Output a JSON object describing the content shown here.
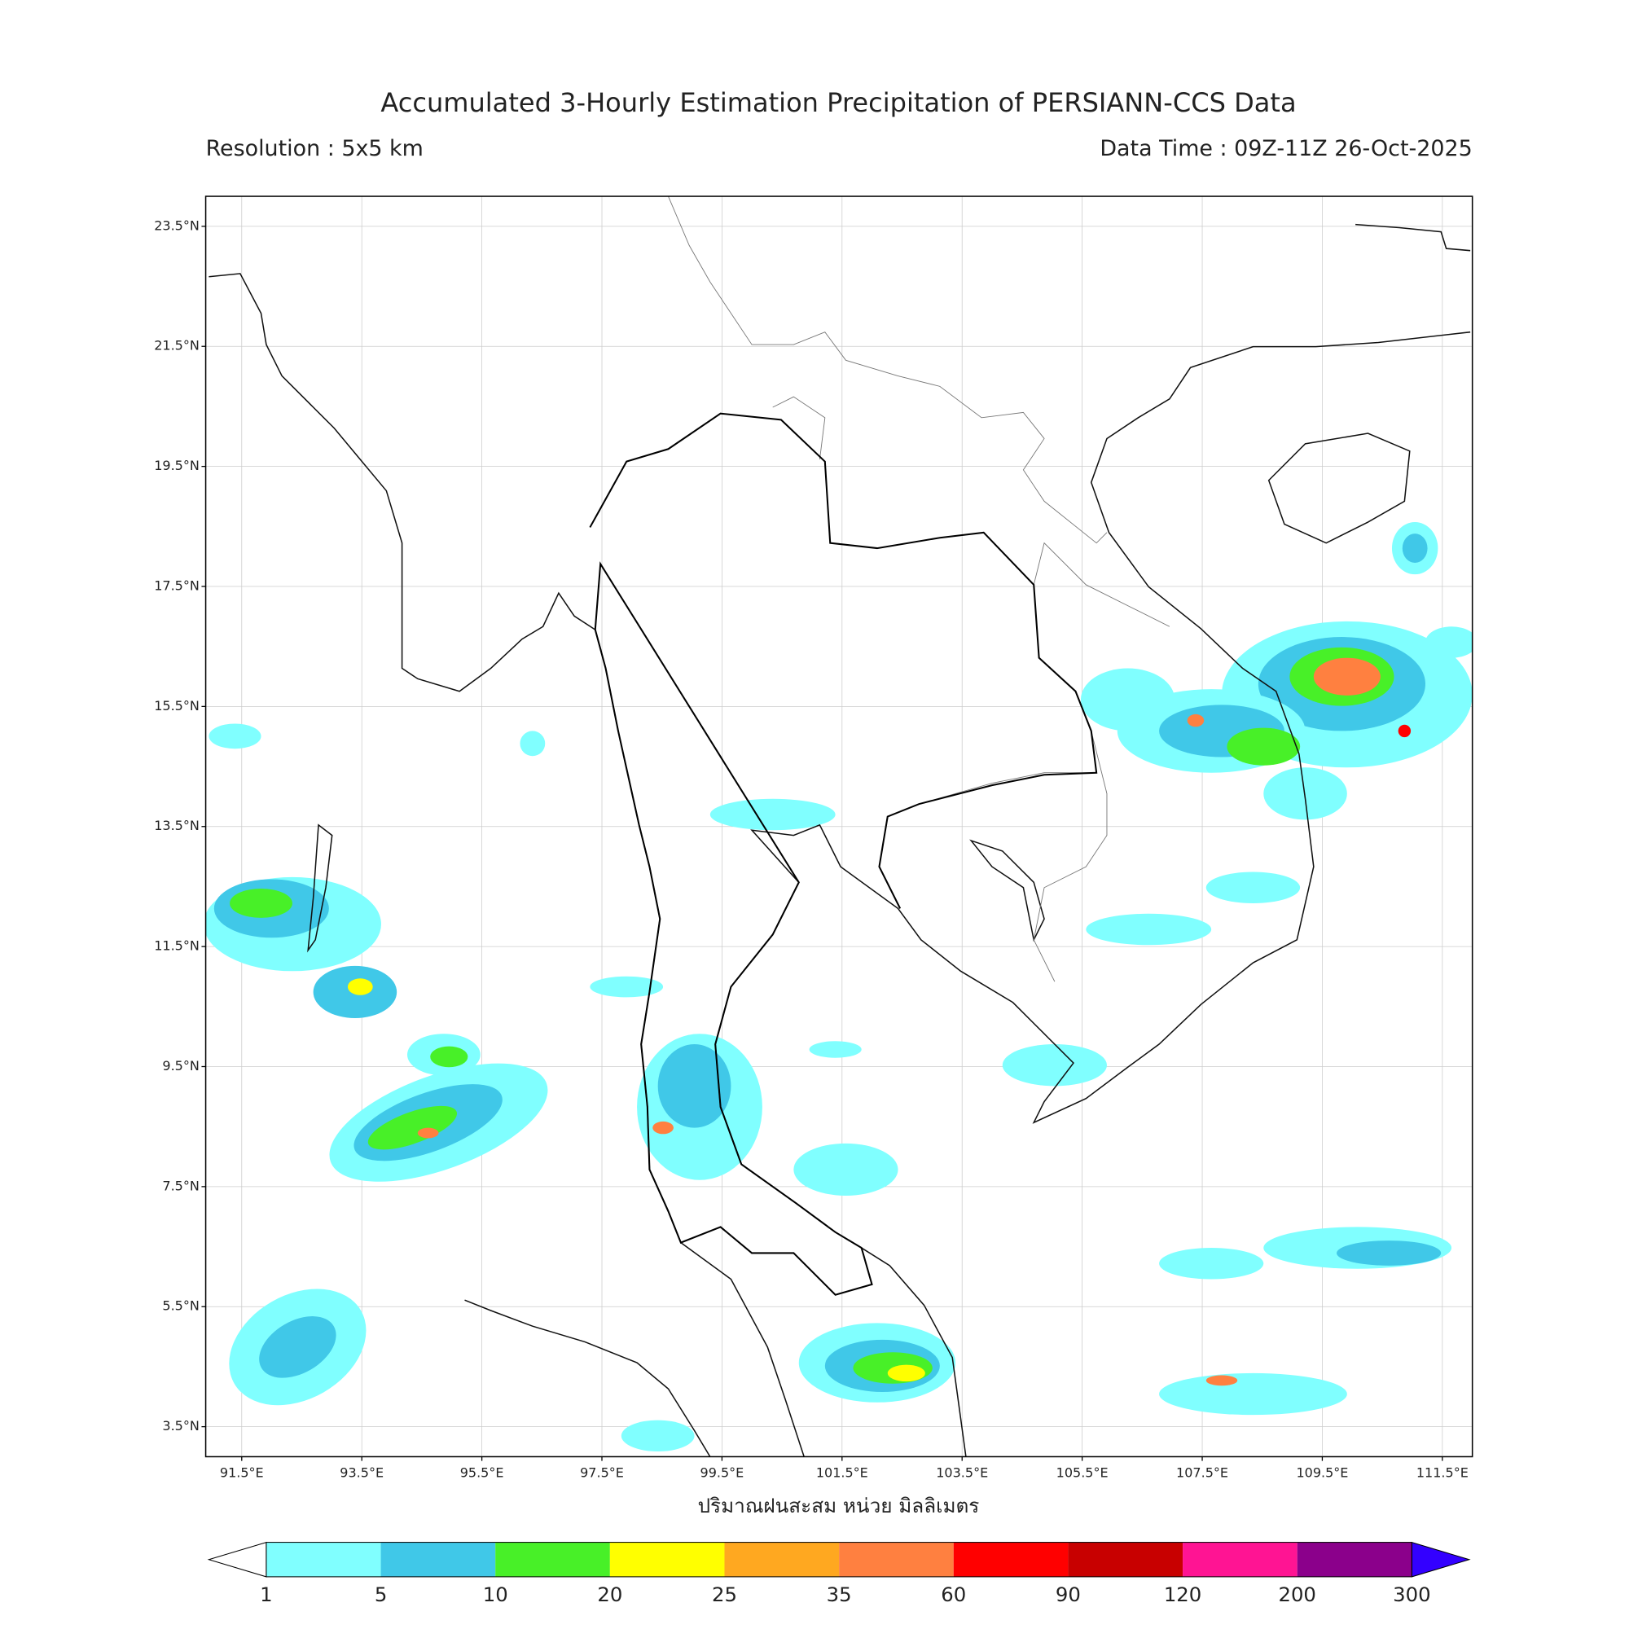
{
  "title": "Accumulated 3-Hourly Estimation Precipitation of PERSIANN-CCS Data",
  "resolution": "Resolution : 5x5 km",
  "data_time": "Data Time : 09Z-11Z 26-Oct-2025",
  "map": {
    "xlim": [
      90.9,
      112.0
    ],
    "ylim": [
      3.0,
      24.0
    ],
    "lon_ticks": [
      {
        "value": 91.5,
        "label": "91.5°E"
      },
      {
        "value": 93.5,
        "label": "93.5°E"
      },
      {
        "value": 95.5,
        "label": "95.5°E"
      },
      {
        "value": 97.5,
        "label": "97.5°E"
      },
      {
        "value": 99.5,
        "label": "99.5°E"
      },
      {
        "value": 101.5,
        "label": "101.5°E"
      },
      {
        "value": 103.5,
        "label": "103.5°E"
      },
      {
        "value": 105.5,
        "label": "105.5°E"
      },
      {
        "value": 107.5,
        "label": "107.5°E"
      },
      {
        "value": 109.5,
        "label": "109.5°E"
      },
      {
        "value": 111.5,
        "label": "111.5°E"
      }
    ],
    "lat_ticks": [
      {
        "value": 3.5,
        "label": "3.5°N"
      },
      {
        "value": 5.5,
        "label": "5.5°N"
      },
      {
        "value": 7.5,
        "label": "7.5°N"
      },
      {
        "value": 9.5,
        "label": "9.5°N"
      },
      {
        "value": 11.5,
        "label": "11.5°N"
      },
      {
        "value": 13.5,
        "label": "13.5°N"
      },
      {
        "value": 15.5,
        "label": "15.5°N"
      },
      {
        "value": 17.5,
        "label": "17.5°N"
      },
      {
        "value": 19.5,
        "label": "19.5°N"
      },
      {
        "value": 21.5,
        "label": "21.5°N"
      },
      {
        "value": 23.5,
        "label": "23.5°N"
      }
    ],
    "grid": true
  },
  "colorbar": {
    "label": "ปริมาณฝนสะสม หน่วย มิลลิเมตร",
    "levels": [
      1,
      5,
      10,
      20,
      25,
      35,
      60,
      90,
      120,
      200,
      300
    ],
    "colors": [
      "#80ffff",
      "#40c8e8",
      "#48f028",
      "#ffff00",
      "#ffa820",
      "#ff8040",
      "#ff0000",
      "#c80000",
      "#ff1493",
      "#8b008b"
    ],
    "under_color": "#ffffff",
    "over_color": "#3300ff"
  }
}
